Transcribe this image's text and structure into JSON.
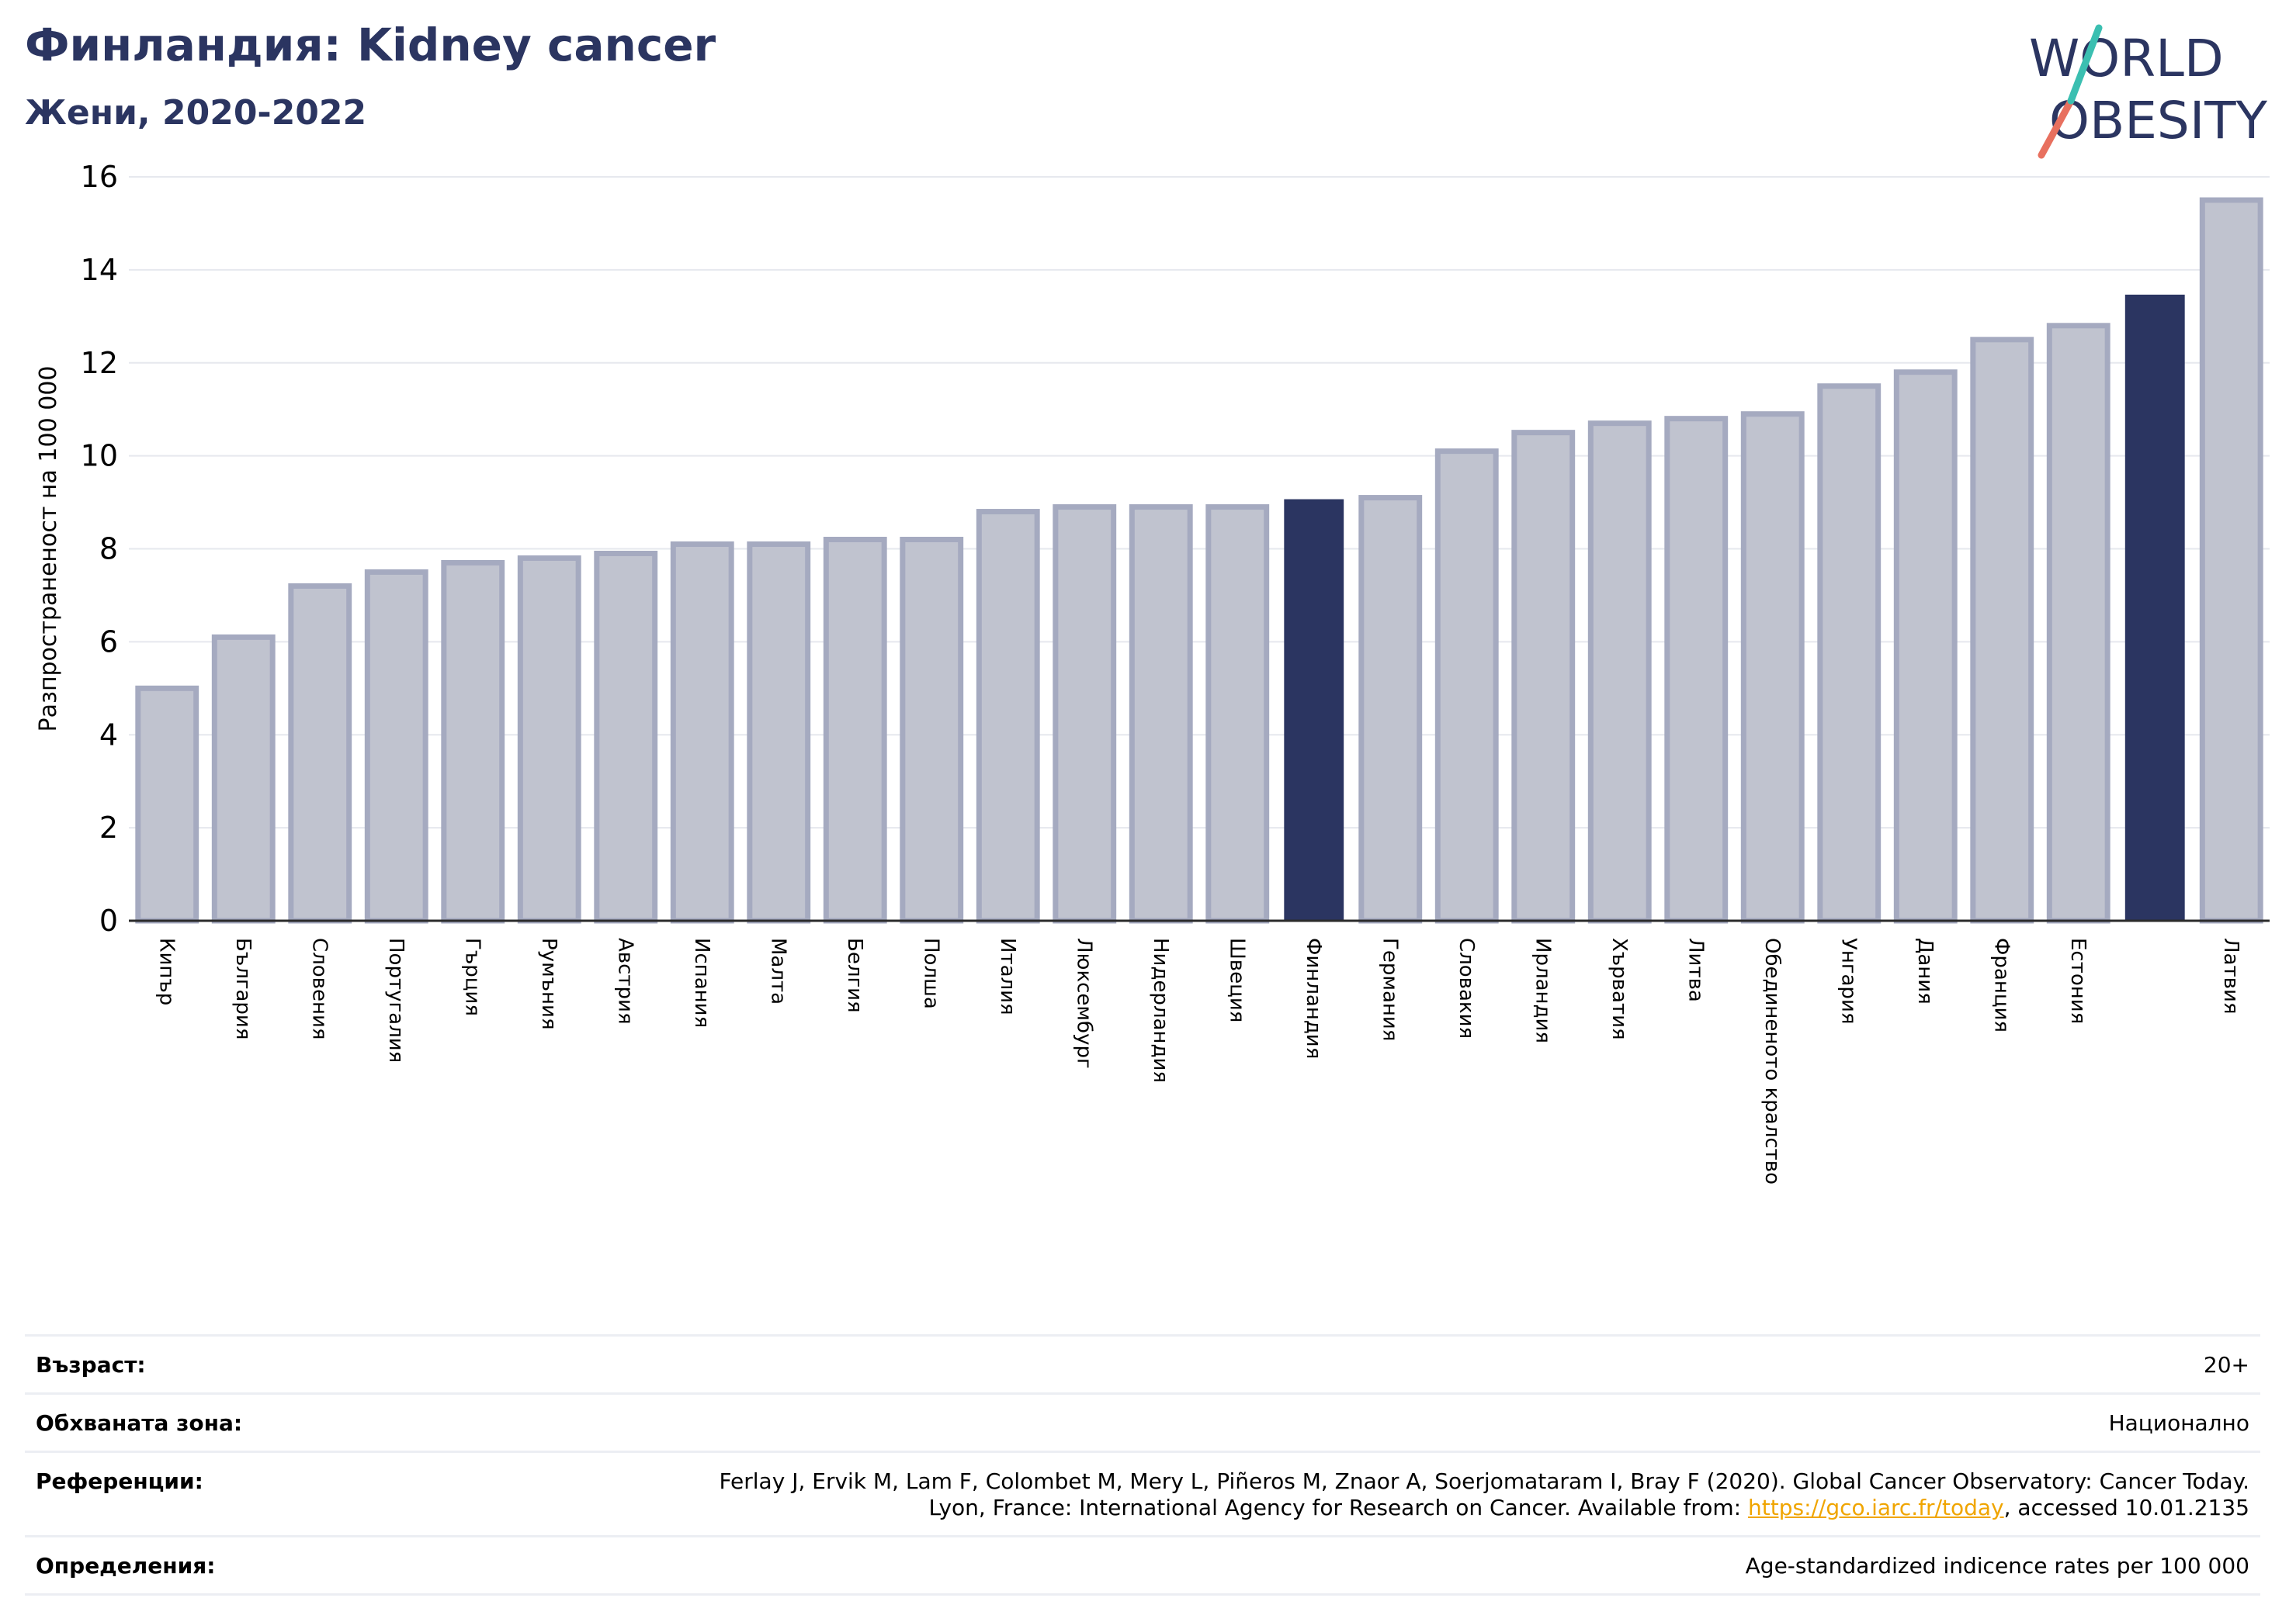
{
  "header": {
    "title": "Финландия: Kidney cancer",
    "subtitle": "Жени, 2020-2022"
  },
  "logo": {
    "line1": "WORLD",
    "line2": "OBESITY"
  },
  "colors": {
    "highlight": "#2b3561",
    "bar_fill": "#c0c3cf",
    "bar_stroke": "#a5aac0",
    "grid": "#e6e8ee"
  },
  "chart_data": {
    "type": "bar",
    "ylabel": "Разпространеност  на 100 000",
    "ylim": [
      0,
      16
    ],
    "yticks": [
      0,
      2,
      4,
      6,
      8,
      10,
      12,
      14,
      16
    ],
    "grid": true,
    "categories": [
      "Кипър",
      "България",
      "Словения",
      "Португалия",
      "Гърция",
      "Румъния",
      "Австрия",
      "Испания",
      "Малта",
      "Белгия",
      "Полша",
      "Италия",
      "Люксембург",
      "Нидерландия",
      "Швеция",
      "Финландия",
      "Германия",
      "Словакия",
      "Ирландия",
      "Хърватия",
      "Литва",
      "Обединеното кралство",
      "Унгария",
      "Дания",
      "Франция",
      "Естония",
      "",
      "Латвия"
    ],
    "values": [
      5.0,
      6.1,
      7.2,
      7.5,
      7.7,
      7.8,
      7.9,
      8.1,
      8.1,
      8.2,
      8.2,
      8.8,
      8.9,
      8.9,
      8.9,
      9.05,
      9.1,
      10.1,
      10.5,
      10.7,
      10.8,
      10.9,
      11.5,
      11.8,
      12.5,
      12.8,
      13.45,
      15.5
    ],
    "highlighted_indices": [
      15,
      26
    ]
  },
  "info": {
    "age": {
      "label": "Възраст:",
      "value": "20+"
    },
    "coverage": {
      "label": "Обхваната зона:",
      "value": "Национално"
    },
    "references": {
      "label": "Референции:",
      "line1": "Ferlay J, Ervik M, Lam F, Colombet M, Mery L, Piñeros M, Znaor A, Soerjomataram I, Bray F (2020). Global Cancer Observatory: Cancer Today.",
      "line2_prefix": "Lyon, France: International Agency for Research on Cancer. Available from: ",
      "link": "https://gco.iarc.fr/today",
      "line2_suffix": ", accessed 10.01.2135"
    },
    "definitions": {
      "label": "Определения:",
      "value": "Age-standardized indicence rates per 100 000"
    }
  }
}
